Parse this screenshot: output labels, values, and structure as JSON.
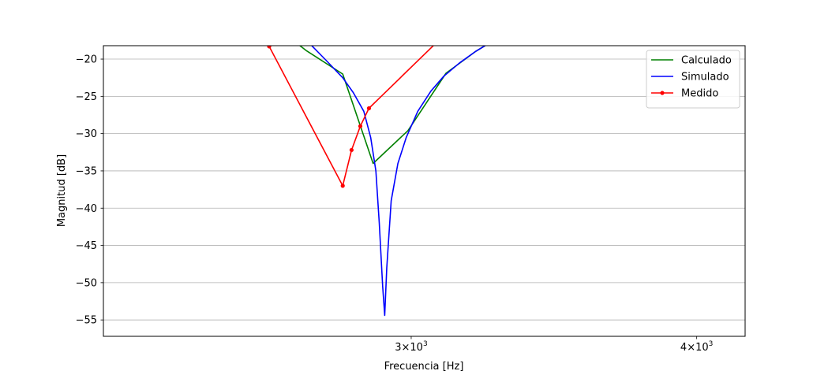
{
  "chart_data": {
    "type": "line",
    "title": "",
    "xlabel": "Frecuencia [Hz]",
    "ylabel": "Magnitud [dB]",
    "xscale": "log",
    "xlim": [
      2200,
      4200
    ],
    "ylim": [
      -57.2,
      -18.2
    ],
    "grid": "y-major",
    "legend_position": "top-right",
    "x_ticks": [
      {
        "value": 3000,
        "mant": "3",
        "exp": "3"
      },
      {
        "value": 4000,
        "mant": "4",
        "exp": "3"
      }
    ],
    "y_ticks": [
      -20,
      -25,
      -30,
      -35,
      -40,
      -45,
      -50,
      -55
    ],
    "series": [
      {
        "name": "Calculado",
        "color": "#008000",
        "marker": "none",
        "x": [
          2600,
          2700,
          2800,
          2887,
          2990,
          3107,
          3200,
          3300
        ],
        "y": [
          -15.0,
          -18.9,
          -22.0,
          -34.0,
          -29.6,
          -21.9,
          -19.0,
          -16.5
        ]
      },
      {
        "name": "Simulado",
        "color": "#0000ff",
        "marker": "none",
        "x": [
          2650,
          2700,
          2750,
          2800,
          2830,
          2860,
          2880,
          2895,
          2905,
          2915,
          2921,
          2927,
          2940,
          2960,
          2985,
          3020,
          3060,
          3100,
          3150,
          3200,
          3260
        ],
        "y": [
          -14.0,
          -17.5,
          -20.0,
          -22.5,
          -24.5,
          -27.0,
          -30.5,
          -35.0,
          -42.0,
          -50.5,
          -54.4,
          -48.0,
          -39.0,
          -34.0,
          -30.5,
          -27.0,
          -24.3,
          -22.3,
          -20.5,
          -19.0,
          -17.5
        ]
      },
      {
        "name": "Medido",
        "color": "#ff0000",
        "marker": "circle",
        "x": [
          2600,
          2800,
          2825,
          2850,
          2875,
          3120
        ],
        "y": [
          -18.3,
          -37.0,
          -32.2,
          -29.0,
          -26.6,
          -16.0
        ]
      }
    ]
  }
}
